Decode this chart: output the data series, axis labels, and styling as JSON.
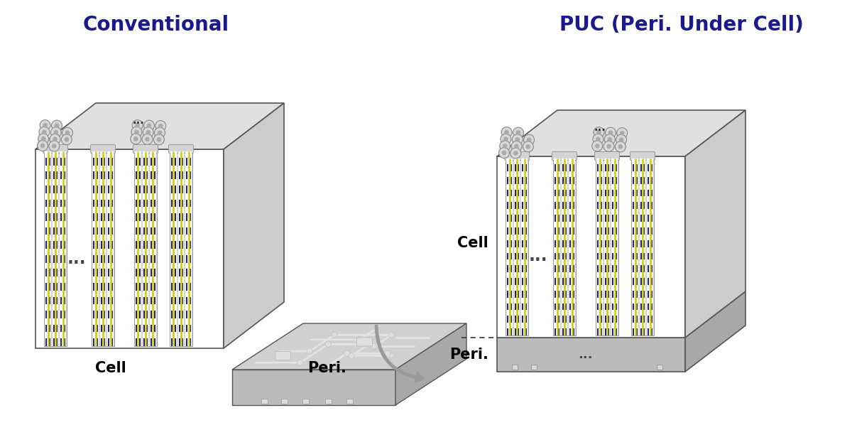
{
  "title_left": "Conventional",
  "title_right": "PUC (Peri. Under Cell)",
  "title_color": "#1a1a8c",
  "title_fontsize": 20,
  "bg_color": "#ffffff",
  "cell_label": "Cell",
  "peri_label": "Peri.",
  "label_fontsize": 15,
  "face_white": "#ffffff",
  "face_light": "#f2f2f2",
  "top_light": "#e0e0e0",
  "side_light": "#cccccc",
  "peri_face": "#bbbbbb",
  "peri_top": "#d0d0d0",
  "peri_side": "#a8a8a8",
  "dark_gray": "#888888",
  "wire_yellow": "#cccc00",
  "wire_blue": "#22227a",
  "wire_bg": "#d8d8d8",
  "arrow_color": "#999999",
  "dot_face": "#d8d8d8",
  "dot_edge": "#888888",
  "dot_center": "#aaaaaa"
}
